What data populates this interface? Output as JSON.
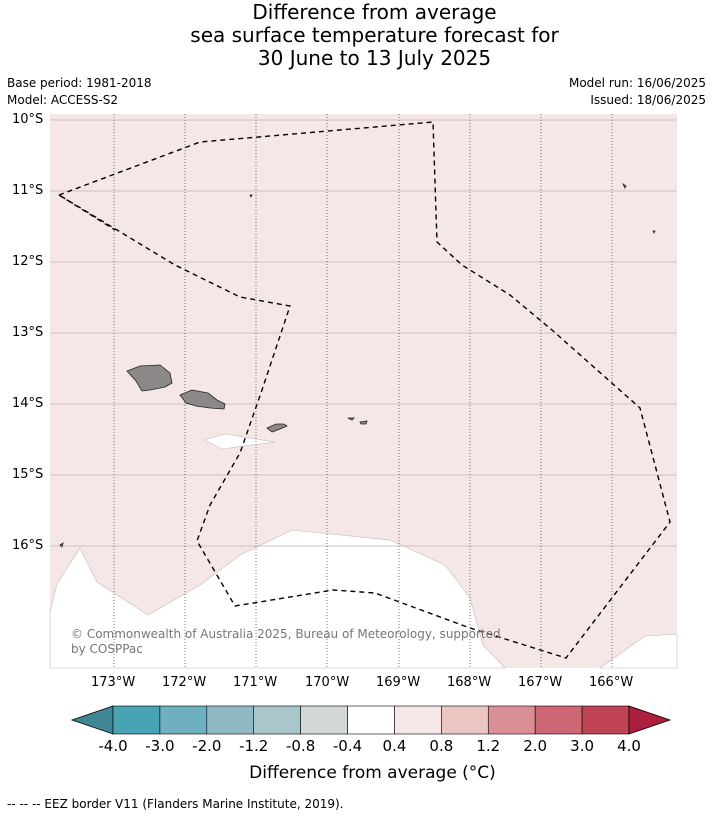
{
  "title": {
    "line1": "Difference from average",
    "line2": "sea surface temperature forecast for",
    "line3": "30 June to 13 July 2025"
  },
  "meta": {
    "base_period": "Base period: 1981-2018",
    "model": "Model: ACCESS-S2",
    "model_run": "Model run: 16/06/2025",
    "issued": "Issued: 18/06/2025"
  },
  "axes": {
    "lat_labels": [
      "10°S",
      "11°S",
      "12°S",
      "13°S",
      "14°S",
      "15°S",
      "16°S"
    ],
    "lon_labels": [
      "173°W",
      "172°W",
      "171°W",
      "170°W",
      "169°W",
      "168°W",
      "167°W",
      "166°W"
    ]
  },
  "copyright": "© Commonwealth of Australia 2025, Bureau of Meteorology, supported by COSPPac",
  "colorbar": {
    "ticks": [
      "-4.0",
      "-3.0",
      "-2.0",
      "-1.2",
      "-0.8",
      "-0.4",
      "0.4",
      "0.8",
      "1.2",
      "2.0",
      "3.0",
      "4.0"
    ],
    "colors": [
      "#3f8694",
      "#48a3b4",
      "#6eb0c0",
      "#8fbac5",
      "#aac6cb",
      "#d2d7d8",
      "#ffffff",
      "#f5e7e6",
      "#ebc5c2",
      "#d98f95",
      "#cc6673",
      "#c04353",
      "#ad1f3e"
    ],
    "label": "Difference from average (°C)"
  },
  "colors": {
    "anomaly_0_4_to_0_8": "#f5e7e6",
    "land": "#8c8888"
  },
  "footer": "--  --  -- EEZ border V11 (Flanders Marine Institute, 2019)."
}
